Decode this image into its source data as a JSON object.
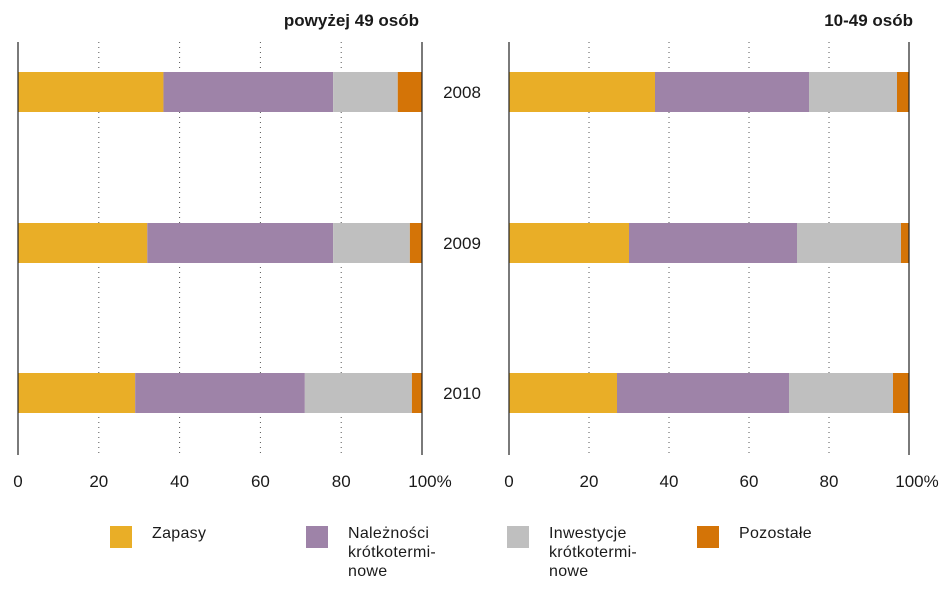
{
  "chart_data": [
    {
      "type": "bar",
      "orientation": "horizontal",
      "stacked": true,
      "title": "powyżej 49 osób",
      "categories": [
        "2008",
        "2009",
        "2010"
      ],
      "series": [
        {
          "name": "Zapasy",
          "values": [
            36,
            32,
            29
          ]
        },
        {
          "name": "Należności krótkoterminowe",
          "values": [
            42,
            46,
            42
          ]
        },
        {
          "name": "Inwestycje krótkoterminowe",
          "values": [
            16,
            19,
            26.5
          ]
        },
        {
          "name": "Pozostałe",
          "values": [
            6,
            3,
            2.5
          ]
        }
      ],
      "xlim": [
        0,
        100
      ],
      "xticks": [
        "0",
        "20",
        "40",
        "60",
        "80",
        "100%"
      ],
      "grid": "vertical dotted"
    },
    {
      "type": "bar",
      "orientation": "horizontal",
      "stacked": true,
      "title": "10-49 osób",
      "categories": [
        "2008",
        "2009",
        "2010"
      ],
      "series": [
        {
          "name": "Zapasy",
          "values": [
            36.5,
            30,
            27
          ]
        },
        {
          "name": "Należności krótkoterminowe",
          "values": [
            38.5,
            42,
            43
          ]
        },
        {
          "name": "Inwestycje krótkoterminowe",
          "values": [
            22,
            26,
            26
          ]
        },
        {
          "name": "Pozostałe",
          "values": [
            3,
            2,
            4
          ]
        }
      ],
      "xlim": [
        0,
        100
      ],
      "xticks": [
        "0",
        "20",
        "40",
        "60",
        "80",
        "100%"
      ],
      "grid": "vertical dotted"
    }
  ],
  "legend": [
    {
      "label": "Zapasy",
      "color": "#E9AE27"
    },
    {
      "label": "Należności\nkrótkotermi-\nnowe",
      "color": "#9E83A8"
    },
    {
      "label": "Inwestycje\nkrótkotermi-\nnowe",
      "color": "#BFBFBF"
    },
    {
      "label": "Pozostałe",
      "color": "#D47407"
    }
  ],
  "colors": [
    "#E9AE27",
    "#9E83A8",
    "#BFBFBF",
    "#D47407"
  ]
}
